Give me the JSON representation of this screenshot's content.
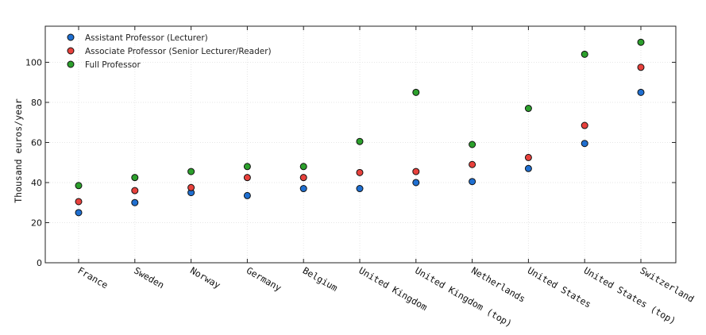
{
  "chart_data": {
    "type": "scatter",
    "title": "",
    "xlabel": "",
    "ylabel": "Thousand euros/year",
    "ylim": [
      0,
      118
    ],
    "yticks": [
      0,
      20,
      40,
      60,
      80,
      100
    ],
    "grid": true,
    "legend_position": "top-left",
    "categories": [
      "France",
      "Sweden",
      "Norway",
      "Germany",
      "Belgium",
      "United Kingdom",
      "United Kingdom (top)",
      "Netherlands",
      "United States",
      "United States (top)",
      "Switzerland"
    ],
    "series": [
      {
        "name": "Assistant Professor (Lecturer)",
        "color": "#1f6fd1",
        "values": [
          25,
          30,
          35,
          33.5,
          37,
          37,
          40,
          40.5,
          47,
          59.5,
          85
        ]
      },
      {
        "name": "Associate Professor (Senior Lecturer/Reader)",
        "color": "#e8413c",
        "values": [
          30.5,
          36,
          37.5,
          42.5,
          42.5,
          45,
          45.5,
          49,
          52.5,
          68.5,
          97.5
        ]
      },
      {
        "name": "Full Professor",
        "color": "#2ca02c",
        "values": [
          38.5,
          42.5,
          45.5,
          48,
          48,
          60.5,
          85,
          59,
          77,
          104,
          110
        ]
      }
    ]
  }
}
